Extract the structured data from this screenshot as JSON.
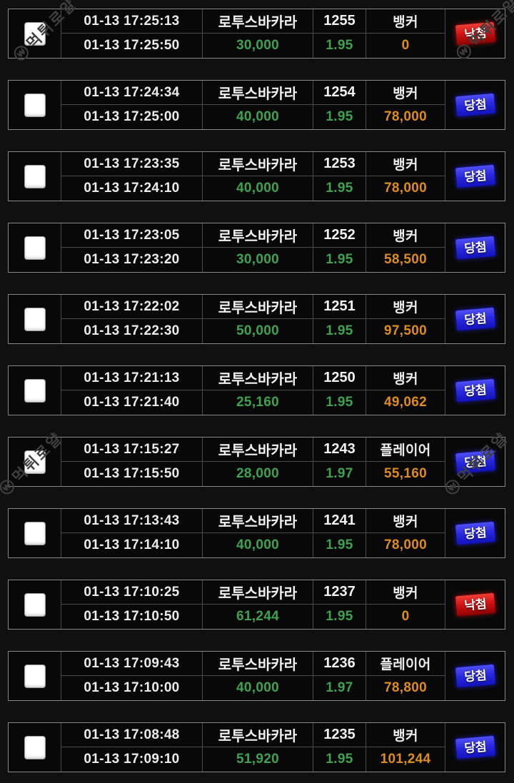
{
  "watermark": {
    "icon_label": "₩",
    "text": "먹튀로얄"
  },
  "colors": {
    "amount_green": "#3fa24f",
    "payout_orange": "#dd8d18",
    "win_badge_blue": "#2a2ae2",
    "lose_badge_red": "#d41212"
  },
  "table": {
    "rows": [
      {
        "bet_time": "01-13 17:25:13",
        "result_time": "01-13 17:25:50",
        "game": "로투스바카라",
        "round": "1255",
        "pick": "뱅커",
        "amount": "30,000",
        "odds": "1.95",
        "payout": "0",
        "result": "낙첨",
        "status": "lose"
      },
      {
        "bet_time": "01-13 17:24:34",
        "result_time": "01-13 17:25:00",
        "game": "로투스바카라",
        "round": "1254",
        "pick": "뱅커",
        "amount": "40,000",
        "odds": "1.95",
        "payout": "78,000",
        "result": "당첨",
        "status": "win"
      },
      {
        "bet_time": "01-13 17:23:35",
        "result_time": "01-13 17:24:10",
        "game": "로투스바카라",
        "round": "1253",
        "pick": "뱅커",
        "amount": "40,000",
        "odds": "1.95",
        "payout": "78,000",
        "result": "당첨",
        "status": "win"
      },
      {
        "bet_time": "01-13 17:23:05",
        "result_time": "01-13 17:23:20",
        "game": "로투스바카라",
        "round": "1252",
        "pick": "뱅커",
        "amount": "30,000",
        "odds": "1.95",
        "payout": "58,500",
        "result": "당첨",
        "status": "win"
      },
      {
        "bet_time": "01-13 17:22:02",
        "result_time": "01-13 17:22:30",
        "game": "로투스바카라",
        "round": "1251",
        "pick": "뱅커",
        "amount": "50,000",
        "odds": "1.95",
        "payout": "97,500",
        "result": "당첨",
        "status": "win"
      },
      {
        "bet_time": "01-13 17:21:13",
        "result_time": "01-13 17:21:40",
        "game": "로투스바카라",
        "round": "1250",
        "pick": "뱅커",
        "amount": "25,160",
        "odds": "1.95",
        "payout": "49,062",
        "result": "당첨",
        "status": "win"
      },
      {
        "bet_time": "01-13 17:15:27",
        "result_time": "01-13 17:15:50",
        "game": "로투스바카라",
        "round": "1243",
        "pick": "플레이어",
        "amount": "28,000",
        "odds": "1.97",
        "payout": "55,160",
        "result": "당첨",
        "status": "win"
      },
      {
        "bet_time": "01-13 17:13:43",
        "result_time": "01-13 17:14:10",
        "game": "로투스바카라",
        "round": "1241",
        "pick": "뱅커",
        "amount": "40,000",
        "odds": "1.95",
        "payout": "78,000",
        "result": "당첨",
        "status": "win"
      },
      {
        "bet_time": "01-13 17:10:25",
        "result_time": "01-13 17:10:50",
        "game": "로투스바카라",
        "round": "1237",
        "pick": "뱅커",
        "amount": "61,244",
        "odds": "1.95",
        "payout": "0",
        "result": "낙첨",
        "status": "lose"
      },
      {
        "bet_time": "01-13 17:09:43",
        "result_time": "01-13 17:10:00",
        "game": "로투스바카라",
        "round": "1236",
        "pick": "플레이어",
        "amount": "40,000",
        "odds": "1.97",
        "payout": "78,800",
        "result": "당첨",
        "status": "win"
      },
      {
        "bet_time": "01-13 17:08:48",
        "result_time": "01-13 17:09:10",
        "game": "로투스바카라",
        "round": "1235",
        "pick": "뱅커",
        "amount": "51,920",
        "odds": "1.95",
        "payout": "101,244",
        "result": "당첨",
        "status": "win"
      }
    ]
  }
}
